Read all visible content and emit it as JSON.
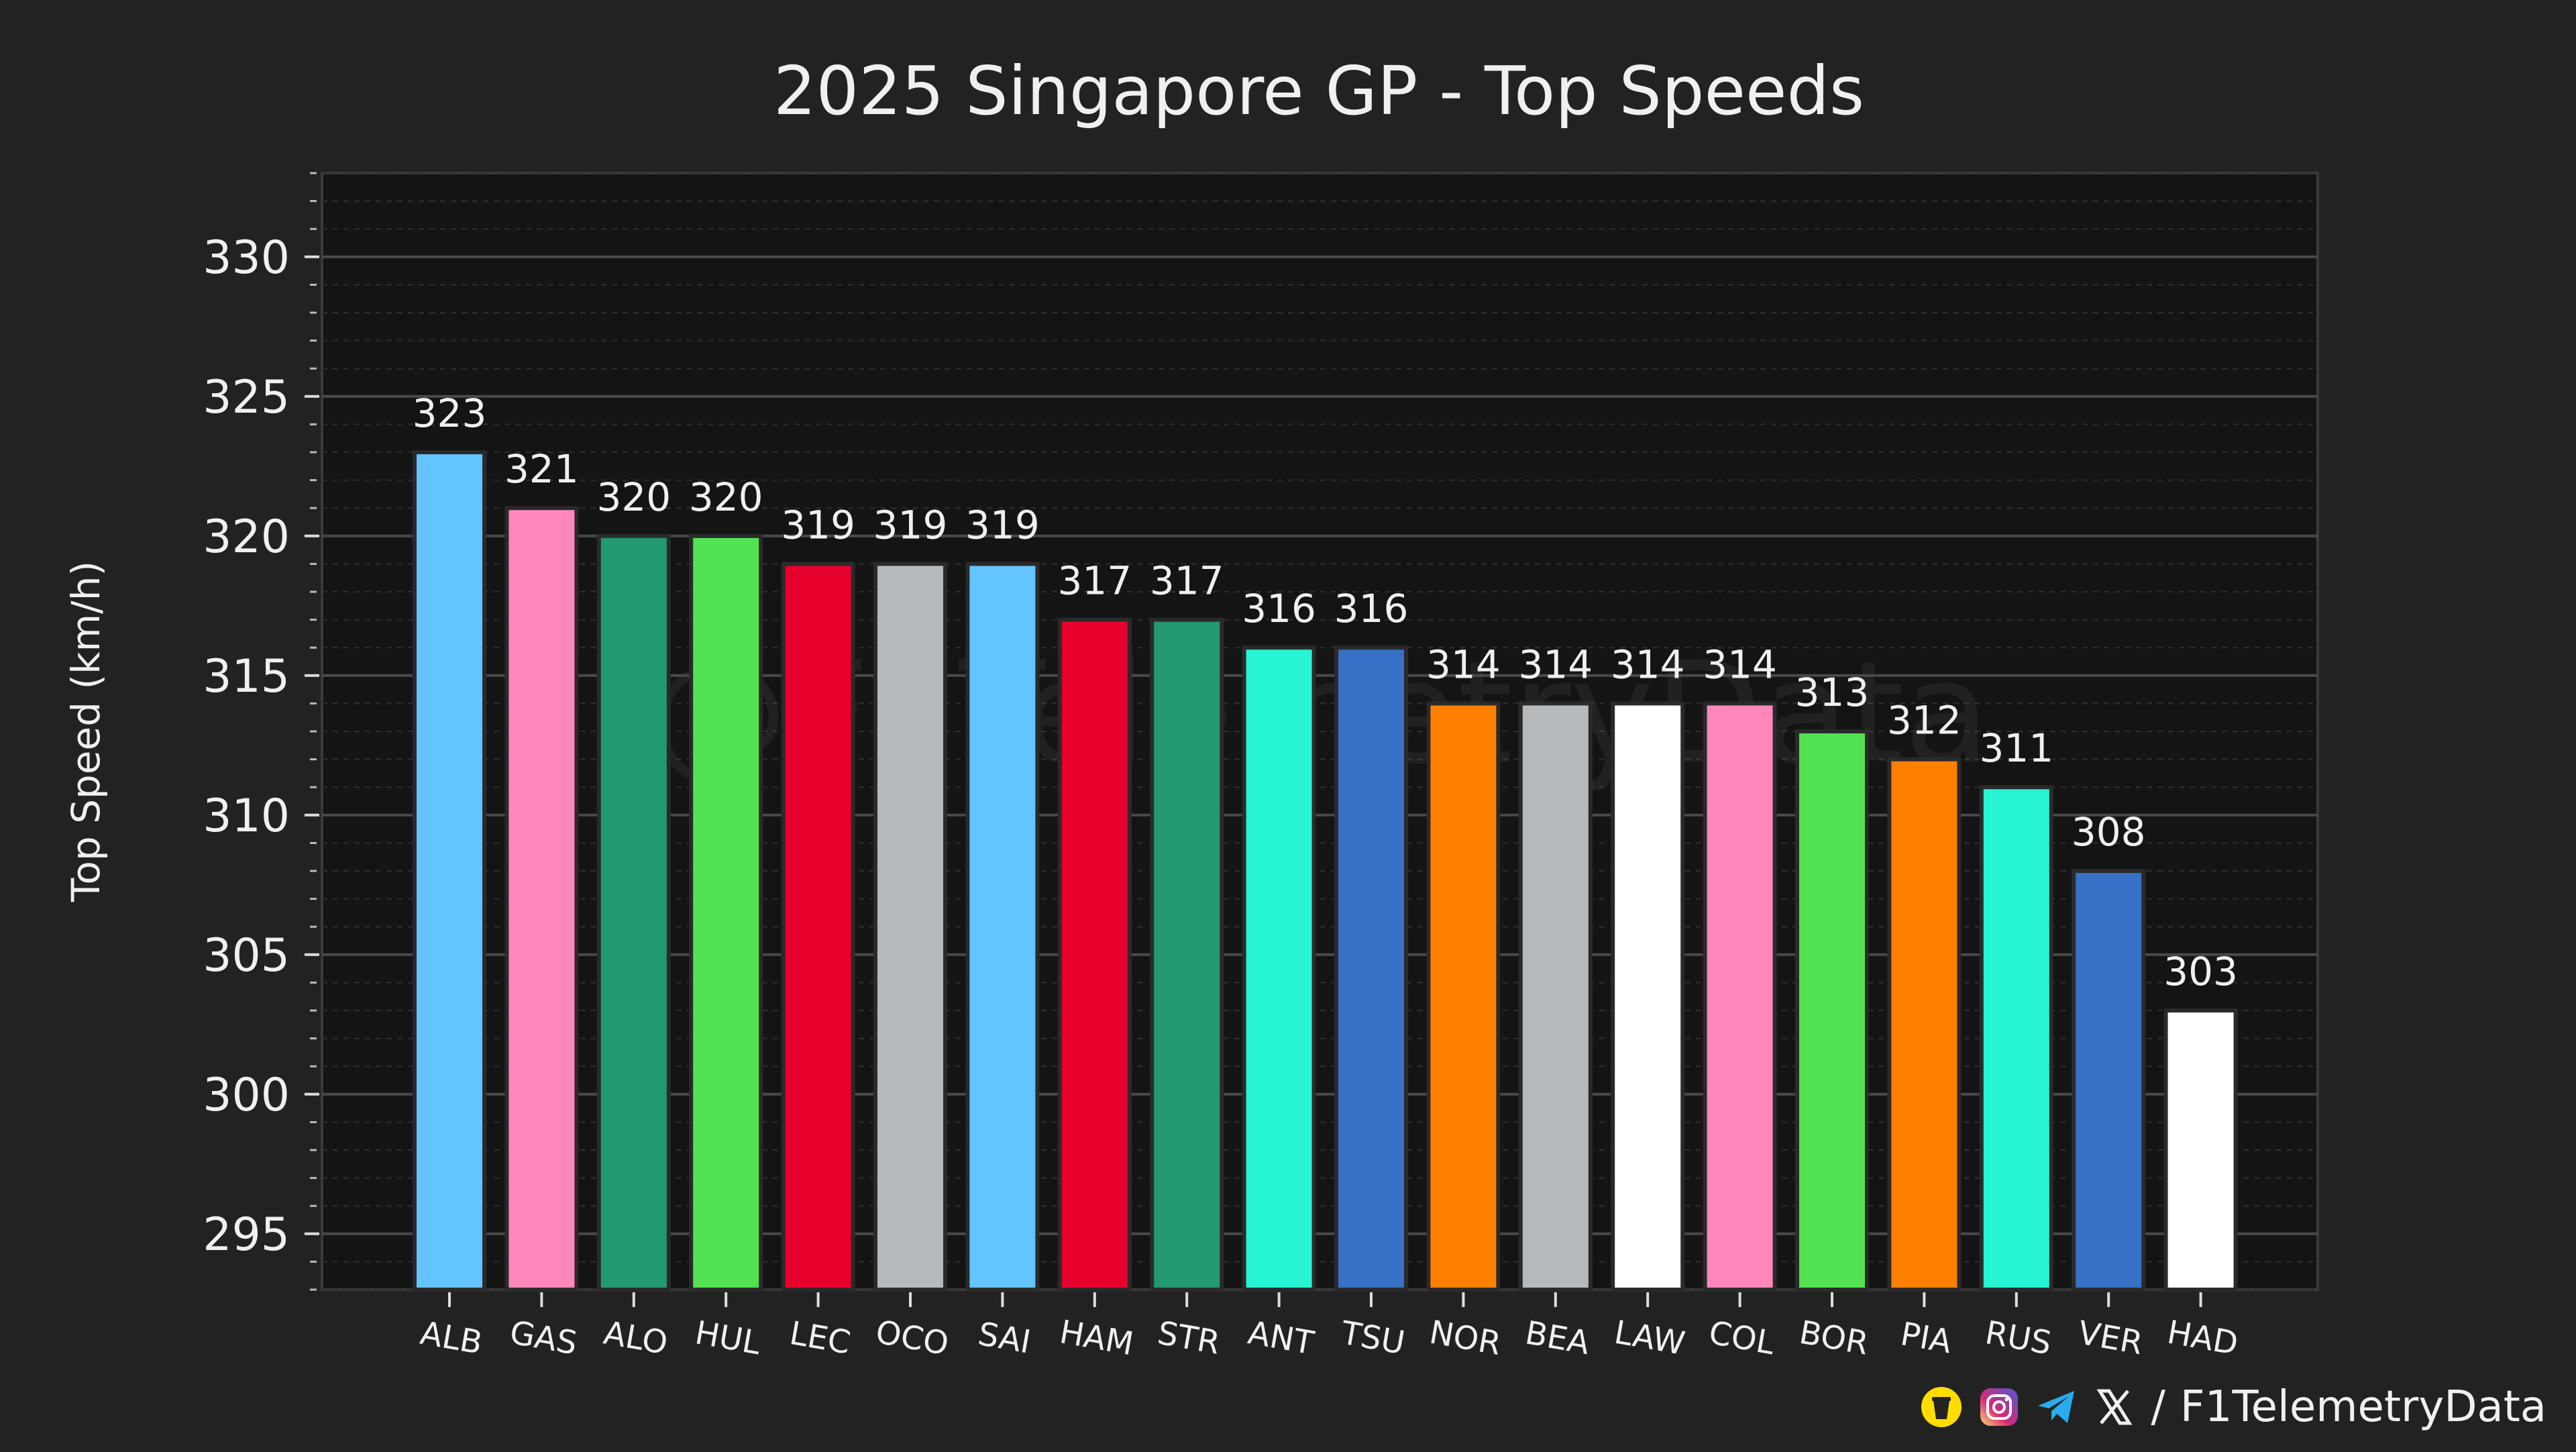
{
  "chart_data": {
    "type": "bar",
    "title": "2025 Singapore GP - Top Speeds",
    "xlabel": "",
    "ylabel": "Top Speed (km/h)",
    "ylim": [
      293,
      333
    ],
    "yticks": [
      295,
      300,
      305,
      310,
      315,
      320,
      325,
      330
    ],
    "ytick_labels": [
      "295",
      "300",
      "305",
      "310",
      "315",
      "320",
      "325",
      "330"
    ],
    "grid": true,
    "categories": [
      "ALB",
      "GAS",
      "ALO",
      "HUL",
      "LEC",
      "OCO",
      "SAI",
      "HAM",
      "STR",
      "ANT",
      "TSU",
      "NOR",
      "BEA",
      "LAW",
      "COL",
      "BOR",
      "PIA",
      "RUS",
      "VER",
      "HAD"
    ],
    "values": [
      323,
      321,
      320,
      320,
      319,
      319,
      319,
      317,
      317,
      316,
      316,
      314,
      314,
      314,
      314,
      313,
      312,
      311,
      308,
      303
    ],
    "data_labels": [
      "323",
      "321",
      "320",
      "320",
      "319",
      "319",
      "319",
      "317",
      "317",
      "316",
      "316",
      "314",
      "314",
      "314",
      "314",
      "313",
      "312",
      "311",
      "308",
      "303"
    ],
    "colors": [
      "#64C4FF",
      "#FF87BC",
      "#229971",
      "#52E252",
      "#E8002D",
      "#B6BABD",
      "#64C4FF",
      "#E8002D",
      "#229971",
      "#27F4D2",
      "#3671C6",
      "#FF8000",
      "#B6BABD",
      "#FFFFFF",
      "#FF87BC",
      "#52E252",
      "#FF8000",
      "#27F4D2",
      "#3671C6",
      "#FFFFFF"
    ]
  },
  "watermark": "@F1TelemetryData",
  "footer": {
    "separator": "/",
    "handle": "F1TelemetryData",
    "icons": [
      "buymeacoffee-icon",
      "instagram-icon",
      "telegram-icon",
      "x-icon"
    ]
  },
  "colors": {
    "background": "#222222",
    "plot_background": "#141414",
    "grid": "#4a4a4a",
    "text": "#f0f0f0"
  }
}
